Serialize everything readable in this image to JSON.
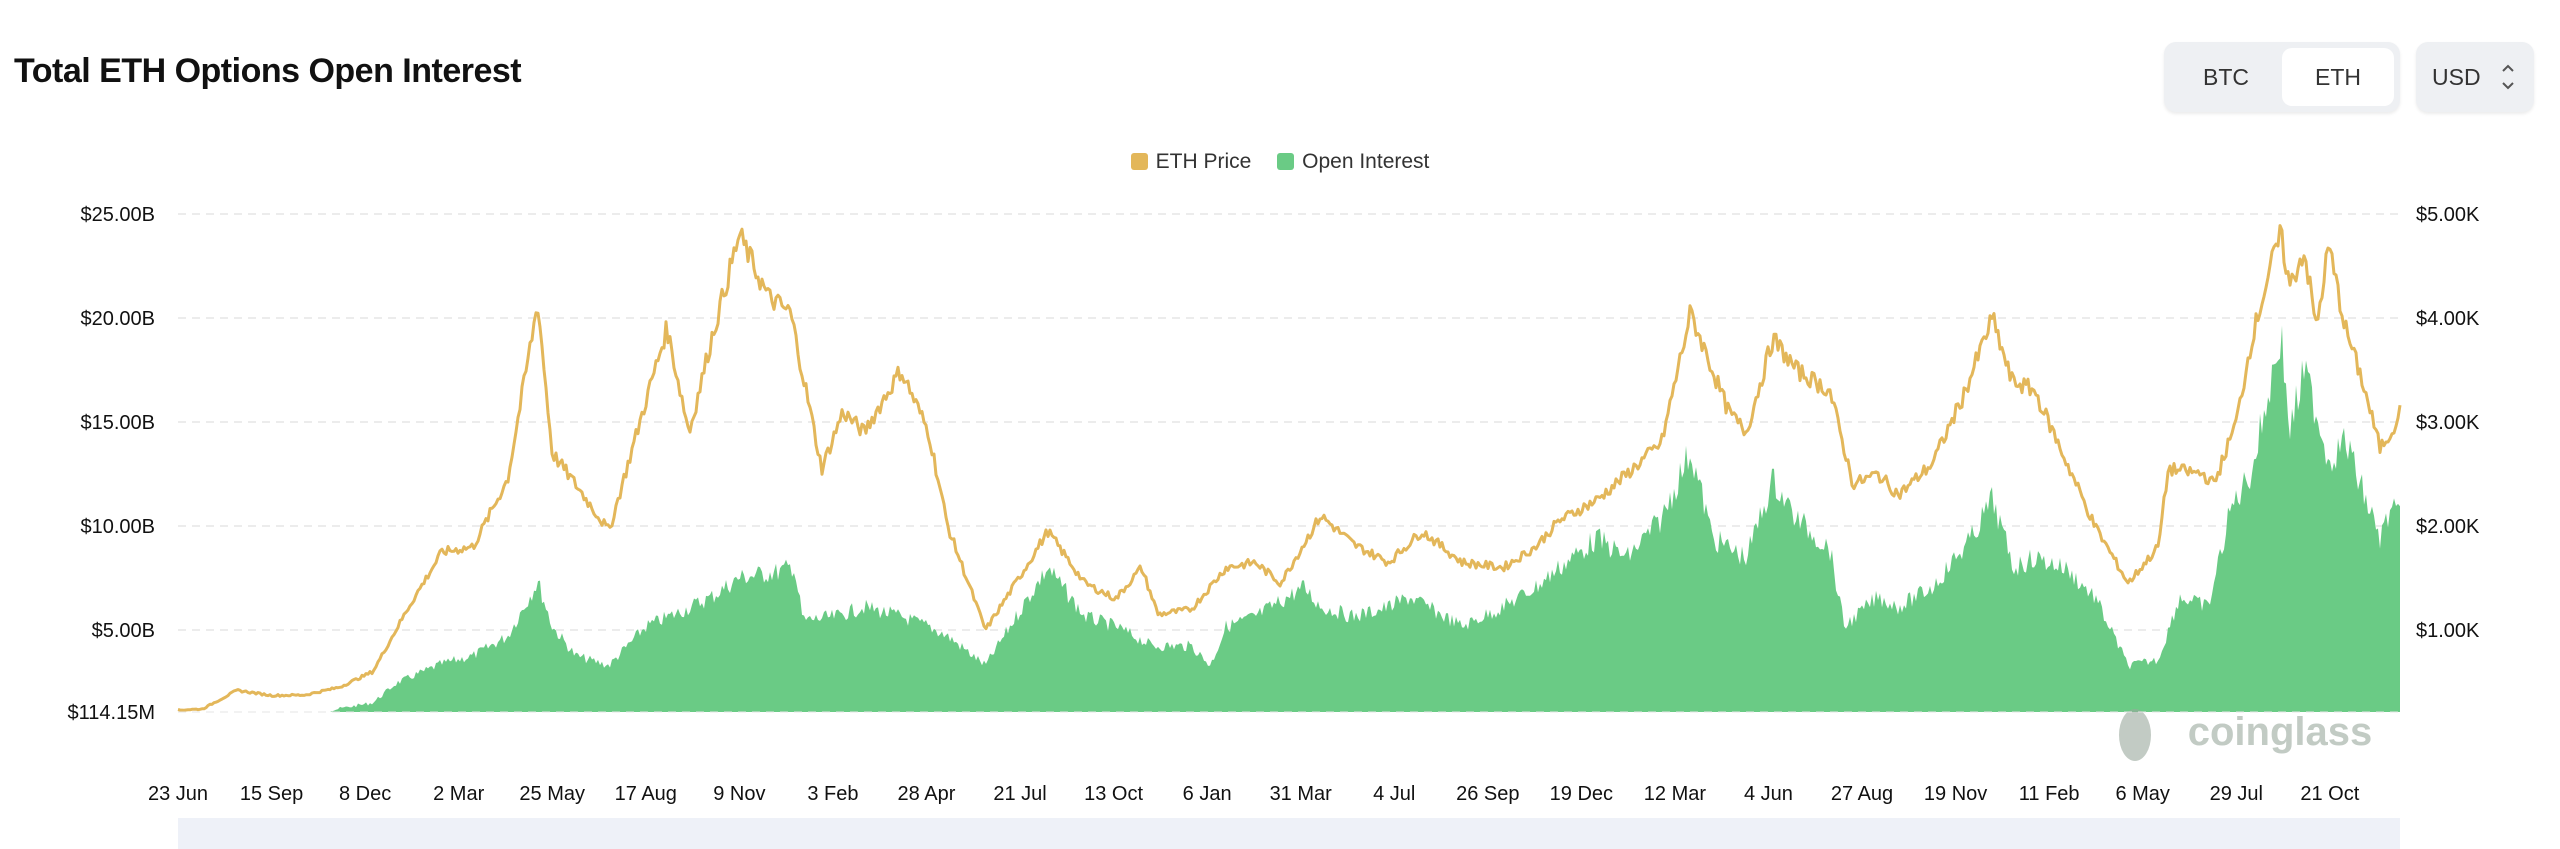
{
  "header": {
    "title": "Total ETH Options Open Interest"
  },
  "toggle": {
    "options": [
      "BTC",
      "ETH"
    ],
    "selected": "ETH"
  },
  "currency": {
    "value": "USD",
    "icon": "up-down-chevron-icon"
  },
  "watermark": "coinglass",
  "colors": {
    "price": "#e3b75a",
    "open_interest": "#6acb85"
  },
  "chart_data": {
    "type": "line+area",
    "title": "Total ETH Options Open Interest",
    "legend": [
      "ETH Price",
      "Open Interest"
    ],
    "legend_position": "top",
    "grid": true,
    "x_tick_labels": [
      "23 Jun",
      "15 Sep",
      "8 Dec",
      "2 Mar",
      "25 May",
      "17 Aug",
      "9 Nov",
      "3 Feb",
      "28 Apr",
      "21 Jul",
      "13 Oct",
      "6 Jan",
      "31 Mar",
      "4 Jul",
      "26 Sep",
      "19 Dec",
      "12 Mar",
      "4 Jun",
      "27 Aug",
      "19 Nov",
      "11 Feb",
      "6 May",
      "29 Jul",
      "21 Oct"
    ],
    "x_range": [
      "2020-06-23",
      "2025-12-09"
    ],
    "left_axis": {
      "ticks": [
        "$114.15M",
        "$5.00B",
        "$10.00B",
        "$15.00B",
        "$20.00B",
        "$25.00B"
      ],
      "unit": "USD billions",
      "range": [
        0.11415,
        25
      ]
    },
    "right_axis": {
      "ticks": [
        "$1.00K",
        "$2.00K",
        "$3.00K",
        "$4.00K",
        "$5.00K"
      ],
      "unit": "USD",
      "range": [
        210,
        5000
      ]
    },
    "series": [
      {
        "name": "ETH Price",
        "axis": "right",
        "type": "line",
        "points": [
          [
            "2020-06-23",
            230
          ],
          [
            "2020-07-15",
            240
          ],
          [
            "2020-08-15",
            420
          ],
          [
            "2020-09-15",
            370
          ],
          [
            "2020-10-15",
            375
          ],
          [
            "2020-11-15",
            450
          ],
          [
            "2020-12-15",
            600
          ],
          [
            "2021-01-15",
            1200
          ],
          [
            "2021-02-15",
            1750
          ],
          [
            "2021-03-15",
            1800
          ],
          [
            "2021-04-15",
            2450
          ],
          [
            "2021-05-12",
            4150
          ],
          [
            "2021-05-25",
            2700
          ],
          [
            "2021-06-15",
            2400
          ],
          [
            "2021-07-15",
            1950
          ],
          [
            "2021-08-17",
            3200
          ],
          [
            "2021-09-05",
            3900
          ],
          [
            "2021-09-25",
            2900
          ],
          [
            "2021-10-15",
            3800
          ],
          [
            "2021-11-09",
            4800
          ],
          [
            "2021-12-05",
            4200
          ],
          [
            "2021-12-25",
            4050
          ],
          [
            "2022-01-22",
            2550
          ],
          [
            "2022-02-10",
            3100
          ],
          [
            "2022-03-01",
            2900
          ],
          [
            "2022-04-03",
            3500
          ],
          [
            "2022-04-28",
            2900
          ],
          [
            "2022-05-15",
            2000
          ],
          [
            "2022-06-18",
            1000
          ],
          [
            "2022-07-21",
            1550
          ],
          [
            "2022-08-13",
            1950
          ],
          [
            "2022-09-15",
            1450
          ],
          [
            "2022-10-13",
            1300
          ],
          [
            "2022-11-05",
            1600
          ],
          [
            "2022-11-20",
            1150
          ],
          [
            "2022-12-20",
            1200
          ],
          [
            "2023-01-20",
            1600
          ],
          [
            "2023-02-15",
            1650
          ],
          [
            "2023-03-10",
            1450
          ],
          [
            "2023-04-15",
            2100
          ],
          [
            "2023-05-15",
            1820
          ],
          [
            "2023-06-15",
            1650
          ],
          [
            "2023-07-15",
            1950
          ],
          [
            "2023-08-20",
            1650
          ],
          [
            "2023-09-26",
            1600
          ],
          [
            "2023-10-25",
            1800
          ],
          [
            "2023-11-15",
            2050
          ],
          [
            "2023-12-19",
            2250
          ],
          [
            "2024-01-15",
            2500
          ],
          [
            "2024-02-15",
            2800
          ],
          [
            "2024-03-12",
            4050
          ],
          [
            "2024-04-15",
            3100
          ],
          [
            "2024-05-01",
            2900
          ],
          [
            "2024-05-25",
            3800
          ],
          [
            "2024-06-15",
            3500
          ],
          [
            "2024-07-15",
            3300
          ],
          [
            "2024-08-05",
            2400
          ],
          [
            "2024-08-27",
            2500
          ],
          [
            "2024-09-15",
            2300
          ],
          [
            "2024-10-15",
            2600
          ],
          [
            "2024-11-12",
            3250
          ],
          [
            "2024-12-08",
            4000
          ],
          [
            "2024-12-25",
            3400
          ],
          [
            "2025-01-15",
            3300
          ],
          [
            "2025-02-11",
            2650
          ],
          [
            "2025-03-10",
            2000
          ],
          [
            "2025-04-09",
            1450
          ],
          [
            "2025-05-06",
            1800
          ],
          [
            "2025-05-15",
            2550
          ],
          [
            "2025-06-15",
            2500
          ],
          [
            "2025-06-25",
            2400
          ],
          [
            "2025-07-15",
            3000
          ],
          [
            "2025-07-29",
            3800
          ],
          [
            "2025-08-15",
            4500
          ],
          [
            "2025-08-24",
            4800
          ],
          [
            "2025-09-01",
            4300
          ],
          [
            "2025-09-14",
            4650
          ],
          [
            "2025-09-25",
            3900
          ],
          [
            "2025-10-06",
            4700
          ],
          [
            "2025-10-21",
            3900
          ],
          [
            "2025-11-05",
            3400
          ],
          [
            "2025-11-21",
            2750
          ],
          [
            "2025-12-01",
            2900
          ],
          [
            "2025-12-09",
            3100
          ]
        ]
      },
      {
        "name": "Open Interest",
        "axis": "left",
        "type": "area",
        "points": [
          [
            "2020-06-23",
            0.12
          ],
          [
            "2020-07-15",
            0.3
          ],
          [
            "2020-08-15",
            0.6
          ],
          [
            "2020-09-15",
            0.8
          ],
          [
            "2020-10-15",
            0.9
          ],
          [
            "2020-11-15",
            1.3
          ],
          [
            "2020-12-15",
            1.6
          ],
          [
            "2021-01-05",
            2.6
          ],
          [
            "2021-02-15",
            3.6
          ],
          [
            "2021-03-15",
            4.0
          ],
          [
            "2021-04-15",
            5.0
          ],
          [
            "2021-05-12",
            7.8
          ],
          [
            "2021-05-25",
            5.5
          ],
          [
            "2021-06-15",
            4.0
          ],
          [
            "2021-07-15",
            3.5
          ],
          [
            "2021-08-17",
            5.5
          ],
          [
            "2021-09-15",
            6.2
          ],
          [
            "2021-10-15",
            7.0
          ],
          [
            "2021-11-09",
            8.0
          ],
          [
            "2021-12-15",
            8.3
          ],
          [
            "2021-12-28",
            8.6
          ],
          [
            "2022-01-05",
            5.8
          ],
          [
            "2022-02-03",
            6.0
          ],
          [
            "2022-03-01",
            6.5
          ],
          [
            "2022-04-03",
            6.0
          ],
          [
            "2022-04-28",
            5.5
          ],
          [
            "2022-05-15",
            5.0
          ],
          [
            "2022-06-18",
            3.5
          ],
          [
            "2022-07-21",
            6.5
          ],
          [
            "2022-08-13",
            8.5
          ],
          [
            "2022-09-15",
            6.0
          ],
          [
            "2022-10-13",
            5.5
          ],
          [
            "2022-11-15",
            4.5
          ],
          [
            "2022-12-20",
            4.5
          ],
          [
            "2023-01-06",
            3.5
          ],
          [
            "2023-01-20",
            5.5
          ],
          [
            "2023-02-15",
            6.0
          ],
          [
            "2023-03-31",
            7.5
          ],
          [
            "2023-04-15",
            6.5
          ],
          [
            "2023-05-15",
            6.0
          ],
          [
            "2023-06-15",
            6.5
          ],
          [
            "2023-07-04",
            7.0
          ],
          [
            "2023-08-20",
            5.5
          ],
          [
            "2023-09-26",
            6.5
          ],
          [
            "2023-10-25",
            7.5
          ],
          [
            "2023-11-15",
            8.5
          ],
          [
            "2023-12-19",
            10.0
          ],
          [
            "2024-01-15",
            9.0
          ],
          [
            "2024-02-15",
            11.0
          ],
          [
            "2024-03-12",
            14.5
          ],
          [
            "2024-04-01",
            10.0
          ],
          [
            "2024-05-01",
            9.0
          ],
          [
            "2024-05-25",
            13.0
          ],
          [
            "2024-06-15",
            11.0
          ],
          [
            "2024-07-15",
            9.5
          ],
          [
            "2024-07-28",
            5.5
          ],
          [
            "2024-08-27",
            7.0
          ],
          [
            "2024-09-15",
            6.5
          ],
          [
            "2024-10-15",
            7.5
          ],
          [
            "2024-11-19",
            10.0
          ],
          [
            "2024-12-08",
            12.0
          ],
          [
            "2024-12-27",
            8.5
          ],
          [
            "2025-01-15",
            9.0
          ],
          [
            "2025-02-11",
            8.5
          ],
          [
            "2025-03-10",
            7.0
          ],
          [
            "2025-04-09",
            3.5
          ],
          [
            "2025-05-06",
            3.8
          ],
          [
            "2025-05-25",
            7.0
          ],
          [
            "2025-06-20",
            6.5
          ],
          [
            "2025-07-10",
            11.5
          ],
          [
            "2025-07-29",
            13.5
          ],
          [
            "2025-08-15",
            18.0
          ],
          [
            "2025-08-24",
            20.5
          ],
          [
            "2025-09-01",
            15.5
          ],
          [
            "2025-09-14",
            18.5
          ],
          [
            "2025-09-25",
            16.5
          ],
          [
            "2025-10-06",
            14.0
          ],
          [
            "2025-10-21",
            15.0
          ],
          [
            "2025-11-05",
            12.5
          ],
          [
            "2025-11-21",
            10.0
          ],
          [
            "2025-12-01",
            11.5
          ],
          [
            "2025-12-09",
            11.0
          ]
        ]
      }
    ]
  }
}
